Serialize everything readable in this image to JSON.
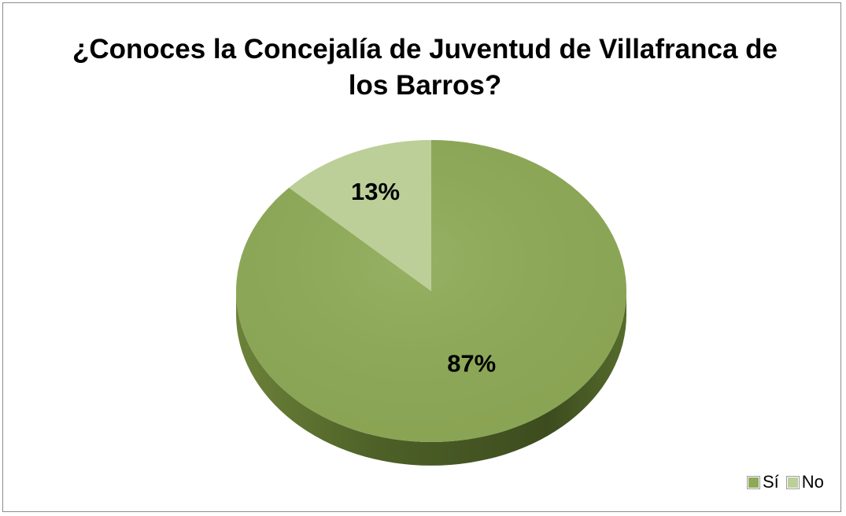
{
  "chart_data": {
    "type": "pie",
    "title": "¿Conoces la Concejalía de Juventud de Villafranca de los Barros?",
    "title_lines": [
      "¿Conoces la Concejalía de Juventud de Villafranca de",
      "los Barros?"
    ],
    "categories": [
      "Sí",
      "No"
    ],
    "values": [
      87,
      13
    ],
    "data_labels": [
      "87%",
      "13%"
    ],
    "colors": [
      "#8eaa56",
      "#bccf99"
    ],
    "side_colors": [
      "#4e6128",
      "#7d8f5a"
    ],
    "legend_position": "bottom-right",
    "style": "3d"
  }
}
